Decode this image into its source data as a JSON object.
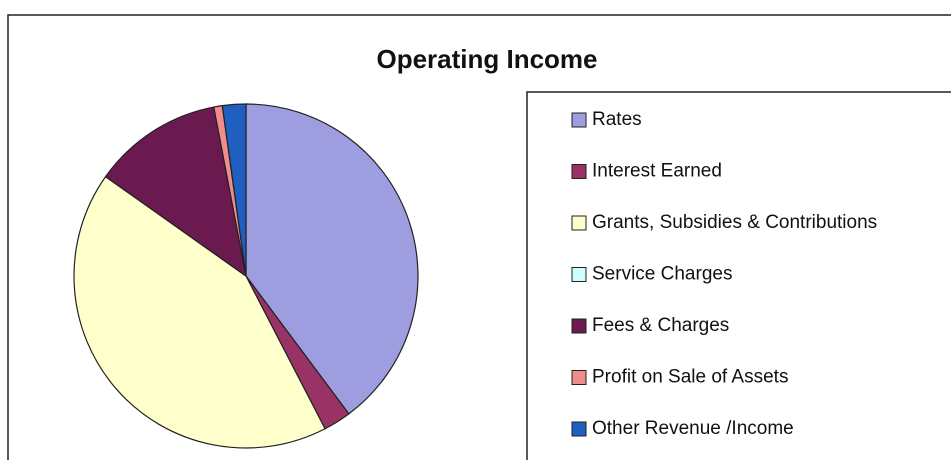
{
  "chart_data": {
    "type": "pie",
    "title": "Operating Income",
    "categories": [
      "Rates",
      "Interest Earned",
      "Grants, Subsidies & Contributions",
      "Service Charges",
      "Fees & Charges",
      "Profit on Sale of Assets",
      "Other Revenue /Income"
    ],
    "values": [
      39.8,
      2.6,
      42.4,
      0,
      12.2,
      0.8,
      2.2
    ],
    "colors": [
      "#9d9de0",
      "#993366",
      "#ffffcc",
      "#ccffff",
      "#6b1a4f",
      "#f08c8c",
      "#1f5fbf"
    ],
    "legend": "right"
  }
}
